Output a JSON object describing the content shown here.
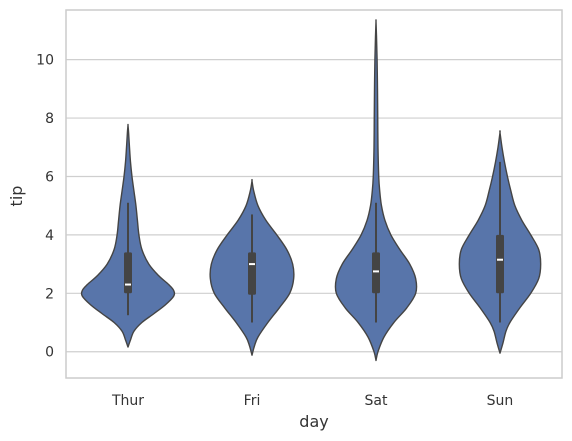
{
  "chart_data": {
    "type": "violin",
    "title": "",
    "xlabel": "day",
    "ylabel": "tip",
    "categories": [
      "Thur",
      "Fri",
      "Sat",
      "Sun"
    ],
    "ylim": [
      -0.9,
      11.7
    ],
    "yticks": [
      0,
      2,
      4,
      6,
      8,
      10
    ],
    "grid": "horizontal",
    "colors": {
      "violin_fill": "#5875aa",
      "violin_edge": "#444444",
      "box": "#444444",
      "median": "#ffffff",
      "grid": "#cfcfcf",
      "frame": "#cccccc"
    },
    "series": [
      {
        "category": "Thur",
        "q1": 2.0,
        "median": 2.3,
        "q3": 3.4,
        "whisker_low": 1.25,
        "whisker_high": 5.1,
        "density_extent": [
          0.16,
          7.75
        ],
        "density_profile": [
          [
            0.16,
            0.0
          ],
          [
            0.4,
            0.05
          ],
          [
            0.7,
            0.12
          ],
          [
            1.0,
            0.28
          ],
          [
            1.3,
            0.52
          ],
          [
            1.6,
            0.75
          ],
          [
            1.9,
            0.92
          ],
          [
            2.1,
            0.92
          ],
          [
            2.3,
            0.82
          ],
          [
            2.6,
            0.62
          ],
          [
            3.0,
            0.42
          ],
          [
            3.5,
            0.28
          ],
          [
            4.0,
            0.22
          ],
          [
            4.5,
            0.19
          ],
          [
            5.0,
            0.16
          ],
          [
            5.5,
            0.12
          ],
          [
            6.0,
            0.08
          ],
          [
            6.5,
            0.05
          ],
          [
            7.0,
            0.03
          ],
          [
            7.5,
            0.012
          ],
          [
            7.75,
            0.0
          ]
        ]
      },
      {
        "category": "Fri",
        "q1": 1.95,
        "median": 3.0,
        "q3": 3.4,
        "whisker_low": 1.0,
        "whisker_high": 4.7,
        "density_extent": [
          -0.12,
          5.85
        ],
        "density_profile": [
          [
            -0.12,
            0.0
          ],
          [
            0.2,
            0.05
          ],
          [
            0.5,
            0.12
          ],
          [
            1.0,
            0.32
          ],
          [
            1.5,
            0.55
          ],
          [
            2.0,
            0.76
          ],
          [
            2.5,
            0.84
          ],
          [
            3.0,
            0.82
          ],
          [
            3.5,
            0.7
          ],
          [
            4.0,
            0.5
          ],
          [
            4.5,
            0.28
          ],
          [
            5.0,
            0.12
          ],
          [
            5.5,
            0.035
          ],
          [
            5.85,
            0.0
          ]
        ]
      },
      {
        "category": "Sat",
        "q1": 2.0,
        "median": 2.75,
        "q3": 3.4,
        "whisker_low": 1.0,
        "whisker_high": 5.1,
        "density_extent": [
          -0.3,
          11.3
        ],
        "density_profile": [
          [
            -0.3,
            0.0
          ],
          [
            0.0,
            0.04
          ],
          [
            0.5,
            0.16
          ],
          [
            1.0,
            0.36
          ],
          [
            1.5,
            0.62
          ],
          [
            2.0,
            0.8
          ],
          [
            2.5,
            0.8
          ],
          [
            3.0,
            0.68
          ],
          [
            3.5,
            0.48
          ],
          [
            4.0,
            0.3
          ],
          [
            4.5,
            0.18
          ],
          [
            5.0,
            0.11
          ],
          [
            5.5,
            0.075
          ],
          [
            6.0,
            0.055
          ],
          [
            7.0,
            0.04
          ],
          [
            8.0,
            0.035
          ],
          [
            9.0,
            0.03
          ],
          [
            10.0,
            0.022
          ],
          [
            10.8,
            0.01
          ],
          [
            11.3,
            0.0
          ]
        ]
      },
      {
        "category": "Sun",
        "q1": 2.0,
        "median": 3.15,
        "q3": 4.0,
        "whisker_low": 1.0,
        "whisker_high": 6.5,
        "density_extent": [
          -0.05,
          7.5
        ],
        "density_profile": [
          [
            -0.05,
            0.0
          ],
          [
            0.3,
            0.06
          ],
          [
            0.7,
            0.12
          ],
          [
            1.0,
            0.2
          ],
          [
            1.5,
            0.4
          ],
          [
            2.0,
            0.62
          ],
          [
            2.5,
            0.78
          ],
          [
            3.0,
            0.82
          ],
          [
            3.5,
            0.78
          ],
          [
            4.0,
            0.62
          ],
          [
            4.5,
            0.44
          ],
          [
            5.0,
            0.3
          ],
          [
            5.5,
            0.22
          ],
          [
            6.0,
            0.15
          ],
          [
            6.5,
            0.09
          ],
          [
            7.0,
            0.04
          ],
          [
            7.5,
            0.0
          ]
        ]
      }
    ]
  }
}
